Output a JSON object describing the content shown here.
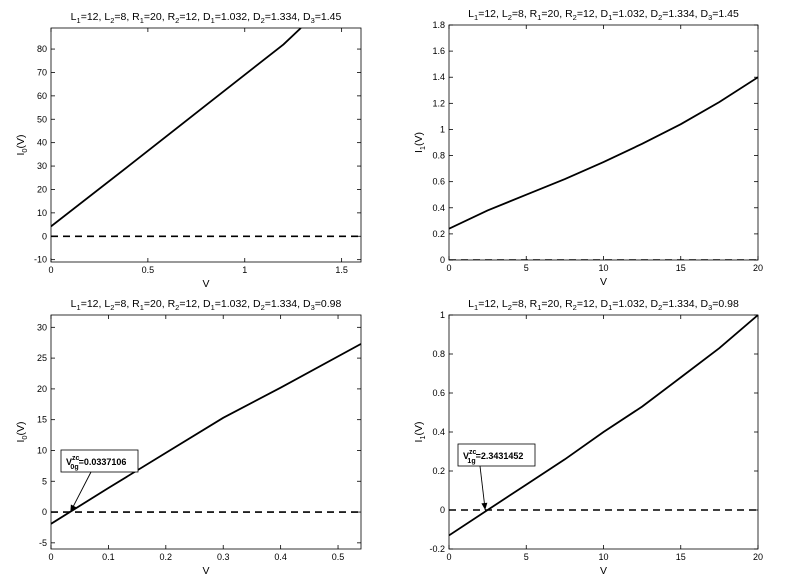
{
  "chart_data": [
    {
      "type": "line",
      "title": "L_1=12, L_2=8, R_1=20, R_2=12, D_1=1.032, D_2=1.334, D_3=1.45",
      "xlabel": "V",
      "ylabel": "I_0(V)",
      "xlim": [
        0,
        1.6
      ],
      "ylim": [
        -11,
        89
      ],
      "xticks": [
        0,
        0.5,
        1,
        1.5
      ],
      "xtick_labels": [
        "0",
        "0.5",
        "1",
        "1.5"
      ],
      "yticks": [
        -10,
        0,
        10,
        20,
        30,
        40,
        50,
        60,
        70,
        80
      ],
      "ytick_labels": [
        "-10",
        "0",
        "10",
        "20",
        "30",
        "40",
        "50",
        "60",
        "70",
        "80"
      ],
      "grid": false,
      "legend": "none",
      "series": [
        {
          "style": "solid",
          "x": [
            0,
            0.4,
            0.8,
            1.2,
            1.29
          ],
          "y": [
            4.2,
            30.0,
            56.0,
            82.0,
            89.0
          ]
        },
        {
          "style": "dashed",
          "x": [
            0,
            1.6
          ],
          "y": [
            0,
            0
          ]
        }
      ]
    },
    {
      "type": "line",
      "title": "L_1=12, L_2=8, R_1=20, R_2=12, D_1=1.032, D_2=1.334, D_3=1.45",
      "xlabel": "V",
      "ylabel": "I_1(V)",
      "xlim": [
        0,
        20
      ],
      "ylim": [
        0,
        1.8
      ],
      "xticks": [
        0,
        5,
        10,
        15,
        20
      ],
      "xtick_labels": [
        "0",
        "5",
        "10",
        "15",
        "20"
      ],
      "yticks": [
        0,
        0.2,
        0.4,
        0.6,
        0.8,
        1,
        1.2,
        1.4,
        1.6,
        1.8
      ],
      "ytick_labels": [
        "0",
        "0.2",
        "0.4",
        "0.6",
        "0.8",
        "1",
        "1.2",
        "1.4",
        "1.6",
        "1.8"
      ],
      "grid": false,
      "legend": "none",
      "series": [
        {
          "style": "solid",
          "x": [
            0,
            2.5,
            5,
            7.5,
            10,
            12.5,
            15,
            17.5,
            20
          ],
          "y": [
            0.24,
            0.38,
            0.5,
            0.62,
            0.75,
            0.89,
            1.04,
            1.21,
            1.4
          ]
        },
        {
          "style": "dashed",
          "x": [
            0,
            20
          ],
          "y": [
            0,
            0
          ]
        }
      ]
    },
    {
      "type": "line",
      "title": "L_1=12, L_2=8, R_1=20, R_2=12, D_1=1.032, D_2=1.334, D_3=0.98",
      "xlabel": "V",
      "ylabel": "I_0(V)",
      "xlim": [
        0,
        0.54
      ],
      "ylim": [
        -6,
        32
      ],
      "xticks": [
        0,
        0.1,
        0.2,
        0.3,
        0.4,
        0.5
      ],
      "xtick_labels": [
        "0",
        "0.1",
        "0.2",
        "0.3",
        "0.4",
        "0.5"
      ],
      "yticks": [
        -5,
        0,
        5,
        10,
        15,
        20,
        25,
        30
      ],
      "ytick_labels": [
        "-5",
        "0",
        "5",
        "10",
        "15",
        "20",
        "25",
        "30"
      ],
      "grid": false,
      "legend": "none",
      "series": [
        {
          "style": "solid",
          "x": [
            0,
            0.1,
            0.2,
            0.3,
            0.4,
            0.54
          ],
          "y": [
            -1.9,
            3.9,
            9.6,
            15.3,
            20.2,
            27.3
          ]
        },
        {
          "style": "dashed",
          "x": [
            0,
            0.54
          ],
          "y": [
            0,
            0
          ]
        }
      ],
      "annotation": {
        "base": "V",
        "sup": "zc",
        "sub": "0g",
        "value": "=0.0337106",
        "x": 0.0337106,
        "y": 0
      }
    },
    {
      "type": "line",
      "title": "L_1=12, L_2=8, R_1=20, R_2=12, D_1=1.032, D_2=1.334, D_3=0.98",
      "xlabel": "V",
      "ylabel": "I_1(V)",
      "xlim": [
        0,
        20
      ],
      "ylim": [
        -0.2,
        1
      ],
      "xticks": [
        0,
        5,
        10,
        15,
        20
      ],
      "xtick_labels": [
        "0",
        "5",
        "10",
        "15",
        "20"
      ],
      "yticks": [
        -0.2,
        0,
        0.2,
        0.4,
        0.6,
        0.8,
        1
      ],
      "ytick_labels": [
        "-0.2",
        "0",
        "0.2",
        "0.4",
        "0.6",
        "0.8",
        "1"
      ],
      "grid": false,
      "legend": "none",
      "series": [
        {
          "style": "solid",
          "x": [
            0,
            2.5,
            5,
            7.5,
            10,
            12.5,
            15,
            17.5,
            20
          ],
          "y": [
            -0.13,
            0.0,
            0.13,
            0.26,
            0.4,
            0.53,
            0.68,
            0.83,
            1.0
          ]
        },
        {
          "style": "dashed",
          "x": [
            0,
            20
          ],
          "y": [
            0,
            0
          ]
        }
      ],
      "annotation": {
        "base": "V",
        "sup": "zc",
        "sub": "1g",
        "value": "=2.3431452",
        "x": 2.3431452,
        "y": 0
      }
    }
  ]
}
